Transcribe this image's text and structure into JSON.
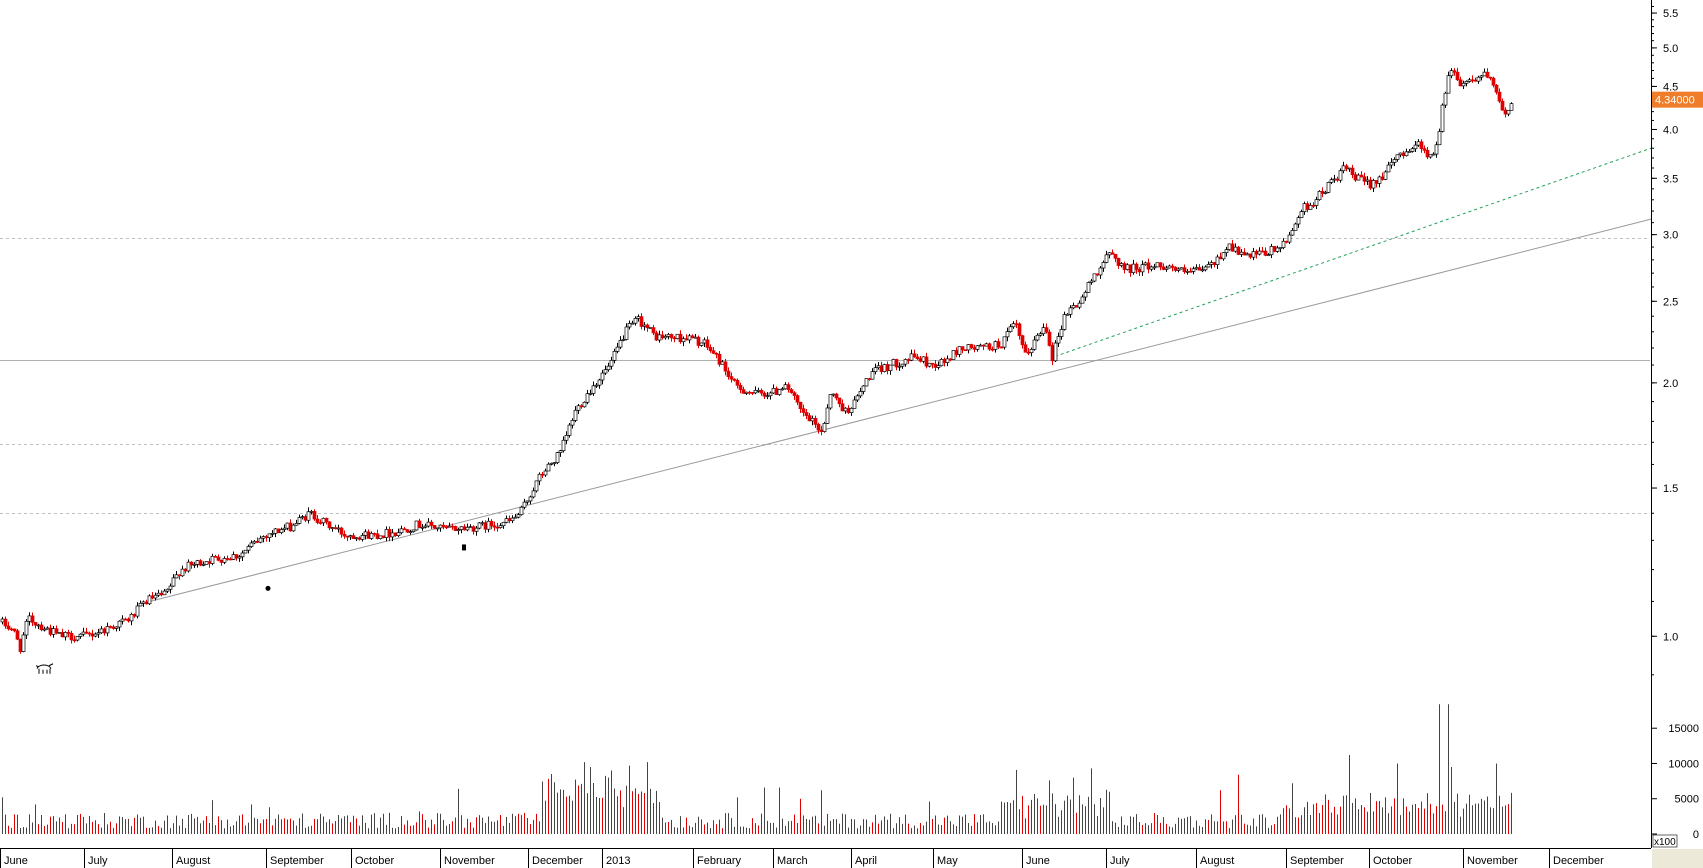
{
  "chart_data": {
    "type": "candlestick",
    "price_axis": {
      "scale": "log",
      "range": [
        0.84,
        5.7
      ],
      "ticks": [
        "1.0",
        "1.5",
        "2.0",
        "2.5",
        "3.0",
        "3.5",
        "4.0",
        "4.5",
        "5.0",
        "5.5"
      ],
      "tick_values": [
        1.0,
        1.5,
        2.0,
        2.5,
        3.0,
        3.5,
        4.0,
        4.5,
        5.0,
        5.5
      ]
    },
    "volume_axis": {
      "range": [
        0,
        19000
      ],
      "ticks": [
        "0",
        "5000",
        "10000",
        "15000"
      ],
      "tick_values": [
        0,
        5000,
        10000,
        15000
      ],
      "multiplier": "x100"
    },
    "last_price": "4.34000",
    "last_price_value": 4.34,
    "x_labels": [
      "June",
      "July",
      "August",
      "September",
      "October",
      "November",
      "December",
      "2013",
      "February",
      "March",
      "April",
      "May",
      "June",
      "July",
      "August",
      "September",
      "October",
      "November",
      "December"
    ],
    "horizontal_levels": [
      {
        "value": 2.97,
        "style": "dashed"
      },
      {
        "value": 2.13,
        "style": "solid"
      },
      {
        "value": 1.69,
        "style": "dashed"
      },
      {
        "value": 1.4,
        "style": "dashed"
      }
    ],
    "close_keypoints": [
      [
        0,
        1.04
      ],
      [
        12,
        1.02
      ],
      [
        20,
        0.97
      ],
      [
        28,
        1.05
      ],
      [
        40,
        1.03
      ],
      [
        60,
        1.0
      ],
      [
        85,
        1.0
      ],
      [
        105,
        1.02
      ],
      [
        130,
        1.05
      ],
      [
        145,
        1.1
      ],
      [
        152,
        1.11
      ],
      [
        165,
        1.12
      ],
      [
        180,
        1.2
      ],
      [
        205,
        1.23
      ],
      [
        240,
        1.25
      ],
      [
        265,
        1.32
      ],
      [
        290,
        1.35
      ],
      [
        310,
        1.4
      ],
      [
        325,
        1.36
      ],
      [
        345,
        1.32
      ],
      [
        375,
        1.32
      ],
      [
        395,
        1.33
      ],
      [
        420,
        1.36
      ],
      [
        445,
        1.34
      ],
      [
        480,
        1.35
      ],
      [
        510,
        1.37
      ],
      [
        520,
        1.4
      ],
      [
        540,
        1.55
      ],
      [
        560,
        1.65
      ],
      [
        575,
        1.85
      ],
      [
        595,
        2.0
      ],
      [
        610,
        2.1
      ],
      [
        625,
        2.3
      ],
      [
        638,
        2.38
      ],
      [
        655,
        2.27
      ],
      [
        690,
        2.26
      ],
      [
        705,
        2.22
      ],
      [
        720,
        2.12
      ],
      [
        735,
        1.98
      ],
      [
        755,
        1.94
      ],
      [
        775,
        1.95
      ],
      [
        785,
        2.0
      ],
      [
        800,
        1.85
      ],
      [
        815,
        1.78
      ],
      [
        822,
        1.75
      ],
      [
        830,
        1.95
      ],
      [
        845,
        1.85
      ],
      [
        855,
        1.9
      ],
      [
        870,
        2.05
      ],
      [
        890,
        2.1
      ],
      [
        915,
        2.15
      ],
      [
        930,
        2.1
      ],
      [
        945,
        2.12
      ],
      [
        960,
        2.2
      ],
      [
        980,
        2.2
      ],
      [
        1000,
        2.22
      ],
      [
        1015,
        2.35
      ],
      [
        1025,
        2.15
      ],
      [
        1045,
        2.35
      ],
      [
        1052,
        2.15
      ],
      [
        1065,
        2.42
      ],
      [
        1080,
        2.5
      ],
      [
        1095,
        2.7
      ],
      [
        1110,
        2.85
      ],
      [
        1125,
        2.73
      ],
      [
        1145,
        2.75
      ],
      [
        1165,
        2.76
      ],
      [
        1185,
        2.7
      ],
      [
        1200,
        2.72
      ],
      [
        1215,
        2.78
      ],
      [
        1228,
        2.92
      ],
      [
        1245,
        2.82
      ],
      [
        1265,
        2.85
      ],
      [
        1285,
        2.92
      ],
      [
        1300,
        3.2
      ],
      [
        1315,
        3.3
      ],
      [
        1330,
        3.45
      ],
      [
        1345,
        3.6
      ],
      [
        1355,
        3.5
      ],
      [
        1370,
        3.45
      ],
      [
        1385,
        3.55
      ],
      [
        1400,
        3.75
      ],
      [
        1420,
        3.85
      ],
      [
        1430,
        3.7
      ],
      [
        1438,
        3.85
      ],
      [
        1442,
        4.3
      ],
      [
        1450,
        4.75
      ],
      [
        1460,
        4.55
      ],
      [
        1475,
        4.6
      ],
      [
        1485,
        4.65
      ],
      [
        1495,
        4.45
      ],
      [
        1503,
        4.15
      ],
      [
        1513,
        4.34
      ]
    ],
    "volume_spikes": [
      [
        3,
        5200
      ],
      [
        35,
        4200
      ],
      [
        65,
        2800
      ],
      [
        212,
        4800
      ],
      [
        250,
        4200
      ],
      [
        270,
        3800
      ],
      [
        390,
        3000
      ],
      [
        420,
        3200
      ],
      [
        458,
        6400
      ],
      [
        550,
        8500
      ],
      [
        583,
        10200
      ],
      [
        590,
        9500
      ],
      [
        612,
        9000
      ],
      [
        630,
        9700
      ],
      [
        648,
        10200
      ],
      [
        737,
        5200
      ],
      [
        765,
        6600
      ],
      [
        780,
        6600
      ],
      [
        800,
        5000
      ],
      [
        822,
        6200
      ],
      [
        930,
        4600
      ],
      [
        1017,
        9100
      ],
      [
        1050,
        7600
      ],
      [
        1072,
        8000
      ],
      [
        1092,
        9300
      ],
      [
        1220,
        6200
      ],
      [
        1237,
        8400
      ],
      [
        1293,
        7200
      ],
      [
        1350,
        11200
      ],
      [
        1397,
        10000
      ],
      [
        1438,
        18400
      ],
      [
        1447,
        18400
      ],
      [
        1450,
        9500
      ],
      [
        1497,
        10000
      ]
    ]
  }
}
